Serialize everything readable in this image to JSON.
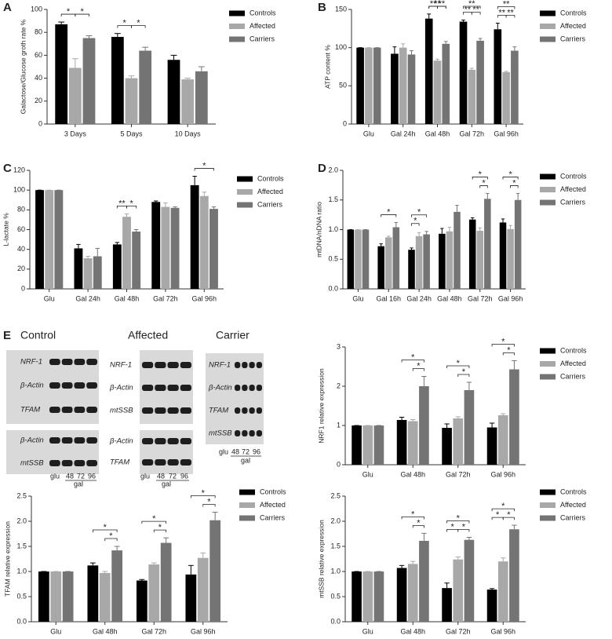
{
  "chart_data": [
    {
      "type": "bar",
      "panel": "A",
      "ylabel": "Galactose/Glucose groth rate %",
      "categories": [
        "3 Days",
        "5 Days",
        "10 Days"
      ],
      "series": [
        {
          "name": "Controls",
          "color": "#000000",
          "values": [
            87,
            76,
            56
          ],
          "errors": [
            2,
            3,
            4
          ]
        },
        {
          "name": "Affected",
          "color": "#a8a8a8",
          "values": [
            49,
            40,
            39
          ],
          "errors": [
            8,
            2,
            1
          ]
        },
        {
          "name": "Carriers",
          "color": "#747474",
          "values": [
            75,
            64,
            46
          ],
          "errors": [
            2,
            3,
            4
          ]
        }
      ],
      "ylim": [
        0,
        100
      ],
      "yticks": [
        0,
        20,
        40,
        60,
        80,
        100
      ],
      "legend": "right",
      "significance": [
        {
          "label": "*",
          "category": "3 Days",
          "between": [
            "Controls",
            "Affected"
          ]
        },
        {
          "label": "*",
          "category": "3 Days",
          "between": [
            "Affected",
            "Carriers"
          ]
        },
        {
          "label": "*",
          "category": "5 Days",
          "between": [
            "Controls",
            "Affected"
          ]
        },
        {
          "label": "*",
          "category": "5 Days",
          "between": [
            "Affected",
            "Carriers"
          ]
        }
      ]
    },
    {
      "type": "bar",
      "panel": "B",
      "ylabel": "ATP content %",
      "categories": [
        "Glu",
        "Gal 24h",
        "Gal 48h",
        "Gal 72h",
        "Gal 96h"
      ],
      "series": [
        {
          "name": "Controls",
          "color": "#000000",
          "values": [
            100,
            92,
            138,
            134,
            124
          ],
          "errors": [
            0,
            9,
            6,
            2,
            8
          ]
        },
        {
          "name": "Affected",
          "color": "#a8a8a8",
          "values": [
            100,
            100,
            83,
            71,
            68
          ],
          "errors": [
            0,
            5,
            2,
            2,
            1
          ]
        },
        {
          "name": "Carriers",
          "color": "#747474",
          "values": [
            100,
            91,
            105,
            109,
            96
          ],
          "errors": [
            0,
            5,
            3,
            3,
            5
          ]
        }
      ],
      "ylim": [
        0,
        150
      ],
      "yticks": [
        0,
        50,
        100,
        150
      ],
      "legend": "right",
      "significance": [
        {
          "label": "**",
          "category": "Gal 48h",
          "between": [
            "Controls",
            "Affected"
          ]
        },
        {
          "label": "**",
          "category": "Gal 48h",
          "between": [
            "Affected",
            "Carriers"
          ]
        },
        {
          "label": "**",
          "category": "Gal 48h",
          "between": [
            "Controls",
            "Carriers"
          ]
        },
        {
          "label": "**",
          "category": "Gal 72h",
          "between": [
            "Controls",
            "Affected"
          ]
        },
        {
          "label": "**",
          "category": "Gal 72h",
          "between": [
            "Affected",
            "Carriers"
          ]
        },
        {
          "label": "**",
          "category": "Gal 72h",
          "between": [
            "Controls",
            "Carriers"
          ]
        },
        {
          "label": "**",
          "category": "Gal 96h",
          "between": [
            "Controls",
            "Affected"
          ]
        },
        {
          "label": "**",
          "category": "Gal 96h",
          "between": [
            "Affected",
            "Carriers"
          ]
        },
        {
          "label": "**",
          "category": "Gal 96h",
          "between": [
            "Controls",
            "Carriers"
          ]
        }
      ]
    },
    {
      "type": "bar",
      "panel": "C",
      "ylabel": "L-lactate %",
      "categories": [
        "Glu",
        "Gal 24h",
        "Gal 48h",
        "Gal 72h",
        "Gal 96h"
      ],
      "series": [
        {
          "name": "Controls",
          "color": "#000000",
          "values": [
            100,
            41,
            45,
            88,
            105
          ],
          "errors": [
            0,
            4,
            2,
            1,
            9
          ]
        },
        {
          "name": "Affected",
          "color": "#a8a8a8",
          "values": [
            100,
            31,
            73,
            83,
            94
          ],
          "errors": [
            0,
            2,
            3,
            4,
            4
          ]
        },
        {
          "name": "Carriers",
          "color": "#747474",
          "values": [
            100,
            33,
            58,
            82,
            81
          ],
          "errors": [
            0,
            8,
            2,
            1,
            2
          ]
        }
      ],
      "ylim": [
        0,
        120
      ],
      "yticks": [
        0,
        20,
        40,
        60,
        80,
        100,
        120
      ],
      "legend": "right",
      "significance": [
        {
          "label": "**",
          "category": "Gal 48h",
          "between": [
            "Controls",
            "Affected"
          ]
        },
        {
          "label": "*",
          "category": "Gal 48h",
          "between": [
            "Affected",
            "Carriers"
          ]
        },
        {
          "label": "*",
          "category": "Gal 96h",
          "between": [
            "Controls",
            "Carriers"
          ]
        }
      ]
    },
    {
      "type": "bar",
      "panel": "D",
      "ylabel": "mtDNA/nDNA ratio",
      "categories": [
        "Glu",
        "Gal 16h",
        "Gal 24h",
        "Gal 48h",
        "Gal 72h",
        "Gal 96h"
      ],
      "series": [
        {
          "name": "Controls",
          "color": "#000000",
          "values": [
            1.0,
            0.72,
            0.66,
            0.93,
            1.17,
            1.12
          ],
          "errors": [
            0,
            0.04,
            0.03,
            0.09,
            0.03,
            0.06
          ]
        },
        {
          "name": "Affected",
          "color": "#a8a8a8",
          "values": [
            1.0,
            0.87,
            0.89,
            0.97,
            0.98,
            1.01
          ],
          "errors": [
            0,
            0.02,
            0.06,
            0.07,
            0.05,
            0.06
          ]
        },
        {
          "name": "Carriers",
          "color": "#747474",
          "values": [
            1.0,
            1.04,
            0.92,
            1.3,
            1.52,
            1.5
          ],
          "errors": [
            0,
            0.08,
            0.05,
            0.11,
            0.09,
            0.11
          ]
        }
      ],
      "ylim": [
        0,
        2
      ],
      "yticks": [
        {
          "value": 0,
          "label": "0.0"
        },
        0.5,
        {
          "value": 1,
          "label": "1.0"
        },
        1.5,
        {
          "value": 2,
          "label": "2.0"
        }
      ],
      "legend": "right",
      "significance": [
        {
          "label": "*",
          "category": "Gal 16h",
          "between": [
            "Controls",
            "Carriers"
          ]
        },
        {
          "label": "*",
          "category": "Gal 24h",
          "between": [
            "Controls",
            "Affected"
          ]
        },
        {
          "label": "*",
          "category": "Gal 24h",
          "between": [
            "Controls",
            "Carriers"
          ]
        },
        {
          "label": "*",
          "category": "Gal 72h",
          "between": [
            "Affected",
            "Carriers"
          ]
        },
        {
          "label": "*",
          "category": "Gal 72h",
          "between": [
            "Controls",
            "Carriers"
          ]
        },
        {
          "label": "*",
          "category": "Gal 96h",
          "between": [
            "Affected",
            "Carriers"
          ]
        },
        {
          "label": "*",
          "category": "Gal 96h",
          "between": [
            "Controls",
            "Carriers"
          ]
        }
      ]
    },
    {
      "type": "bar",
      "ylabel": "NRF1 relative expression",
      "categories": [
        "Glu",
        "Gal 48h",
        "Gal 72h",
        "Gal 96h"
      ],
      "series": [
        {
          "name": "Controls",
          "color": "#000000",
          "values": [
            1.0,
            1.14,
            0.94,
            0.95
          ],
          "errors": [
            0,
            0.07,
            0.1,
            0.11
          ]
        },
        {
          "name": "Affected",
          "color": "#a8a8a8",
          "values": [
            1.0,
            1.11,
            1.18,
            1.26
          ],
          "errors": [
            0,
            0.04,
            0.04,
            0.04
          ]
        },
        {
          "name": "Carriers",
          "color": "#747474",
          "values": [
            1.0,
            2.0,
            1.9,
            2.43
          ],
          "errors": [
            0,
            0.25,
            0.2,
            0.22
          ]
        }
      ],
      "ylim": [
        0,
        3
      ],
      "yticks": [
        0,
        1,
        2,
        3
      ],
      "legend": "right",
      "significance": [
        {
          "label": "*",
          "category": "Gal 48h",
          "between": [
            "Affected",
            "Carriers"
          ]
        },
        {
          "label": "*",
          "category": "Gal 48h",
          "between": [
            "Controls",
            "Carriers"
          ]
        },
        {
          "label": "*",
          "category": "Gal 72h",
          "between": [
            "Affected",
            "Carriers"
          ]
        },
        {
          "label": "*",
          "category": "Gal 72h",
          "between": [
            "Controls",
            "Carriers"
          ]
        },
        {
          "label": "*",
          "category": "Gal 96h",
          "between": [
            "Affected",
            "Carriers"
          ]
        },
        {
          "label": "*",
          "category": "Gal 96h",
          "between": [
            "Controls",
            "Carriers"
          ]
        }
      ]
    },
    {
      "type": "bar",
      "ylabel": "TFAM relative expression",
      "categories": [
        "Glu",
        "Gal 48h",
        "Gal 72h",
        "Gal 96h"
      ],
      "series": [
        {
          "name": "Controls",
          "color": "#000000",
          "values": [
            1.0,
            1.12,
            0.82,
            0.94
          ],
          "errors": [
            0,
            0.05,
            0.02,
            0.18
          ]
        },
        {
          "name": "Affected",
          "color": "#a8a8a8",
          "values": [
            1.0,
            0.97,
            1.14,
            1.27
          ],
          "errors": [
            0,
            0.03,
            0.03,
            0.1
          ]
        },
        {
          "name": "Carriers",
          "color": "#747474",
          "values": [
            1.0,
            1.42,
            1.57,
            2.02
          ],
          "errors": [
            0,
            0.08,
            0.1,
            0.16
          ]
        }
      ],
      "ylim": [
        0,
        2.5
      ],
      "yticks": [
        {
          "value": 0,
          "label": "0.0"
        },
        0.5,
        {
          "value": 1,
          "label": "1.0"
        },
        1.5,
        {
          "value": 2,
          "label": "2.0"
        },
        2.5
      ],
      "legend": "right",
      "significance": [
        {
          "label": "*",
          "category": "Gal 48h",
          "between": [
            "Affected",
            "Carriers"
          ]
        },
        {
          "label": "*",
          "category": "Gal 48h",
          "between": [
            "Controls",
            "Carriers"
          ]
        },
        {
          "label": "*",
          "category": "Gal 72h",
          "between": [
            "Affected",
            "Carriers"
          ]
        },
        {
          "label": "*",
          "category": "Gal 72h",
          "between": [
            "Controls",
            "Carriers"
          ]
        },
        {
          "label": "*",
          "category": "Gal 96h",
          "between": [
            "Affected",
            "Carriers"
          ]
        },
        {
          "label": "*",
          "category": "Gal 96h",
          "between": [
            "Controls",
            "Carriers"
          ]
        }
      ]
    },
    {
      "type": "bar",
      "ylabel": "mtSSB relative expression",
      "categories": [
        "Glu",
        "Gal 48h",
        "Gal 72h",
        "Gal 96h"
      ],
      "series": [
        {
          "name": "Controls",
          "color": "#000000",
          "values": [
            1.0,
            1.07,
            0.67,
            0.64
          ],
          "errors": [
            0,
            0.05,
            0.1,
            0.02
          ]
        },
        {
          "name": "Affected",
          "color": "#a8a8a8",
          "values": [
            1.0,
            1.15,
            1.24,
            1.2
          ],
          "errors": [
            0,
            0.05,
            0.05,
            0.07
          ]
        },
        {
          "name": "Carriers",
          "color": "#747474",
          "values": [
            1.0,
            1.61,
            1.63,
            1.84
          ],
          "errors": [
            0,
            0.15,
            0.05,
            0.08
          ]
        }
      ],
      "ylim": [
        0,
        2.5
      ],
      "yticks": [
        {
          "value": 0,
          "label": "0.0"
        },
        0.5,
        {
          "value": 1,
          "label": "1.0"
        },
        1.5,
        {
          "value": 2,
          "label": "2.0"
        },
        2.5
      ],
      "legend": "right",
      "significance": [
        {
          "label": "*",
          "category": "Gal 48h",
          "between": [
            "Affected",
            "Carriers"
          ]
        },
        {
          "label": "*",
          "category": "Gal 48h",
          "between": [
            "Controls",
            "Carriers"
          ]
        },
        {
          "label": "*",
          "category": "Gal 72h",
          "between": [
            "Controls",
            "Affected"
          ]
        },
        {
          "label": "*",
          "category": "Gal 72h",
          "between": [
            "Affected",
            "Carriers"
          ]
        },
        {
          "label": "*",
          "category": "Gal 72h",
          "between": [
            "Controls",
            "Carriers"
          ]
        },
        {
          "label": "*",
          "category": "Gal 96h",
          "between": [
            "Controls",
            "Affected"
          ]
        },
        {
          "label": "*",
          "category": "Gal 96h",
          "between": [
            "Affected",
            "Carriers"
          ]
        },
        {
          "label": "*",
          "category": "Gal 96h",
          "between": [
            "Controls",
            "Carriers"
          ]
        }
      ]
    }
  ],
  "blot": {
    "panel": "E",
    "blots": [
      {
        "title": "Control",
        "rows": [
          "NRF-1",
          "β-Actin",
          "TFAM",
          "β-Actin",
          "mtSSB"
        ],
        "lanes": [
          "glu",
          "48",
          "72",
          "96"
        ],
        "group": "gal"
      },
      {
        "title": "Affected",
        "rows": [
          "NRF-1",
          "β-Actin",
          "mtSSB",
          "β-Actin",
          "TFAM"
        ],
        "lanes": [
          "glu",
          "48",
          "72",
          "96"
        ],
        "group": "gal"
      },
      {
        "title": "Carrier",
        "rows": [
          "NRF-1",
          "β-Actin",
          "TFAM",
          "mtSSB"
        ],
        "lanes": [
          "glu",
          "48",
          "72",
          "96"
        ],
        "group": "gal"
      }
    ]
  }
}
